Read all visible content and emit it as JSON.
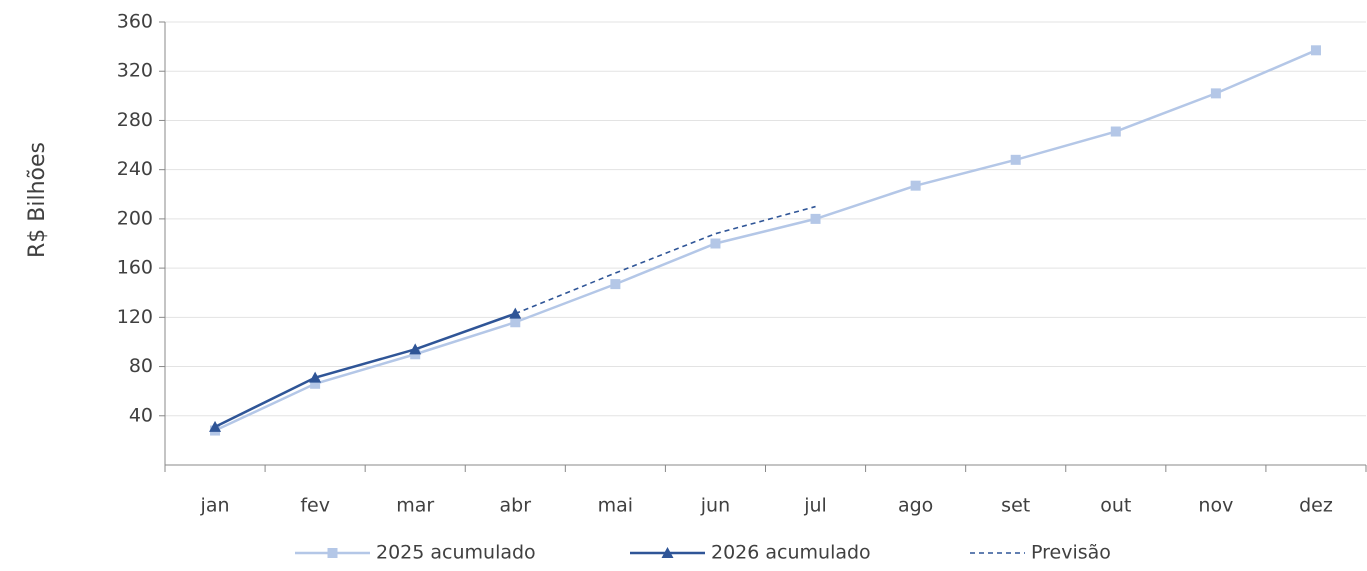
{
  "chart_data": {
    "type": "line",
    "y_label": "R$ Bilhões",
    "categories": [
      "jan",
      "fev",
      "mar",
      "abr",
      "mai",
      "jun",
      "jul",
      "ago",
      "set",
      "out",
      "nov",
      "dez"
    ],
    "series": [
      {
        "name": "2025 acumulado",
        "color": "#b4c7e7",
        "marker": "square",
        "values": [
          28,
          66,
          90,
          116,
          147,
          180,
          200,
          227,
          248,
          271,
          302,
          337
        ]
      },
      {
        "name": "2026 acumulado",
        "color": "#2f5597",
        "marker": "triangle",
        "values": [
          31,
          71,
          94,
          123,
          null,
          null,
          null,
          null,
          null,
          null,
          null,
          null
        ]
      },
      {
        "name": "Previsão",
        "color": "#2f5597",
        "dash": true,
        "values": [
          null,
          null,
          null,
          123,
          156,
          188,
          210,
          null,
          null,
          null,
          null,
          null
        ]
      }
    ],
    "ylim": [
      0,
      360
    ],
    "yticks": [
      40,
      80,
      120,
      160,
      200,
      240,
      280,
      320,
      360
    ],
    "grid": true,
    "legend": "bottom"
  }
}
